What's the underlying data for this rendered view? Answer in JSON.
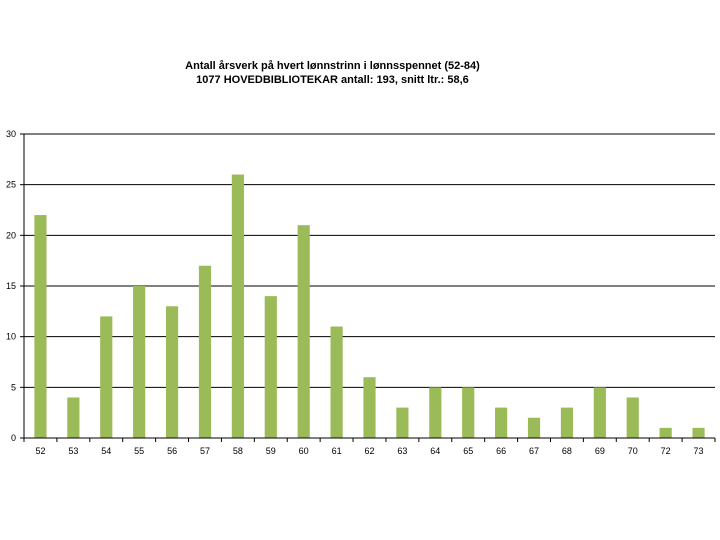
{
  "chart_data": {
    "type": "bar",
    "title": "Antall årsverk på hvert lønnstrinn i lønnsspennet (52-84)",
    "subtitle": "1077 HOVEDBIBLIOTEKAR antall: 193, snitt ltr.: 58,6",
    "categories": [
      "52",
      "53",
      "54",
      "55",
      "56",
      "57",
      "58",
      "59",
      "60",
      "61",
      "62",
      "63",
      "64",
      "65",
      "66",
      "67",
      "68",
      "69",
      "70",
      "72",
      "73"
    ],
    "values": [
      22,
      4,
      12,
      15,
      13,
      17,
      26,
      14,
      21,
      11,
      6,
      3,
      5,
      5,
      3,
      2,
      3,
      5,
      4,
      1,
      1
    ],
    "ylim": [
      0,
      30
    ],
    "yticks": [
      0,
      5,
      10,
      15,
      20,
      25,
      30
    ],
    "grid": true,
    "bar_color": "#9BBB59",
    "xlabel": "",
    "ylabel": ""
  }
}
